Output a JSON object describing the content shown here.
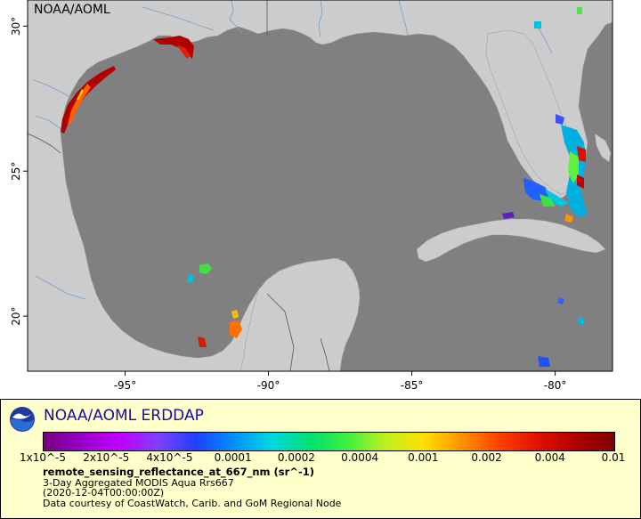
{
  "map": {
    "watermark": "NOAA/AOML",
    "colors": {
      "ocean": "#808080",
      "land": "#cccccc",
      "rivers": "#6fa0d0",
      "borders": "#555555",
      "plot_frame": "#000000"
    },
    "x_ticks": [
      {
        "value": -95,
        "label": "-95°"
      },
      {
        "value": -90,
        "label": "-90°"
      },
      {
        "value": -85,
        "label": "-85°"
      },
      {
        "value": -80,
        "label": "-80°"
      }
    ],
    "y_ticks": [
      {
        "value": 30,
        "label": "30°"
      },
      {
        "value": 25,
        "label": "25°"
      },
      {
        "value": 20,
        "label": "20°"
      }
    ]
  },
  "legend": {
    "logo": "noaa-logo",
    "title": "NOAA/AOML ERDDAP",
    "colorbar_labels": [
      "1x10^-5",
      "2x10^-5",
      "4x10^-5",
      "0.0001",
      "0.0002",
      "0.0004",
      "0.001",
      "0.002",
      "0.004",
      "0.01"
    ],
    "colorbar_colors": [
      "#7a0080",
      "#9800c8",
      "#c000ff",
      "#8040ff",
      "#2040ff",
      "#0090ff",
      "#00d8e0",
      "#00e070",
      "#40f040",
      "#c0f020",
      "#ffe000",
      "#ff9000",
      "#ff4000",
      "#e01000",
      "#b00000",
      "#800000"
    ],
    "variable": "remote_sensing_reflectance_at_667_nm (sr^-1)",
    "dataset": "3-Day Aggregated MODIS Aqua Rrs667",
    "time": "(2020-12-04T00:00:00Z)",
    "credit": "Data courtesy of CoastWatch, Carib. and GoM Regional Node"
  }
}
